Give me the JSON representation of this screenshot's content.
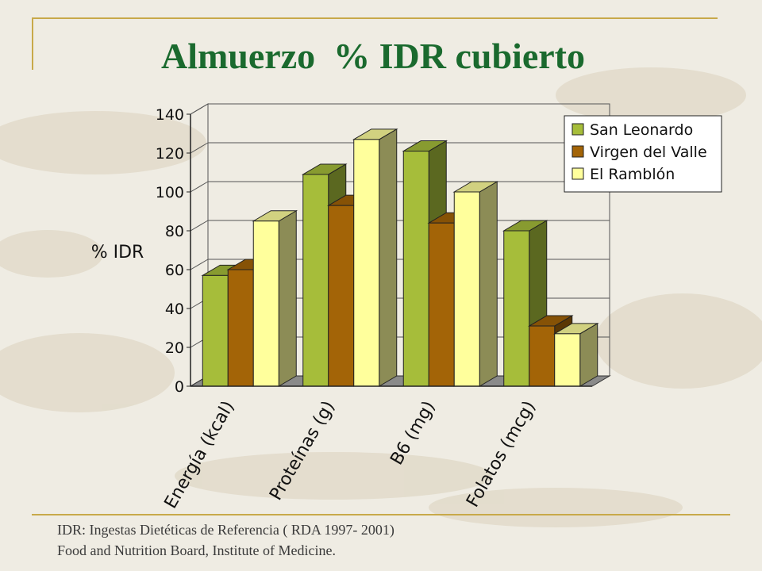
{
  "title": "Almuerzo  % IDR cubierto",
  "footnote": {
    "line1": "IDR: Ingestas Dietéticas de Referencia ( RDA 1997- 2001)",
    "line2": "Food and Nutrition Board, Institute of Medicine."
  },
  "colors": {
    "background": "#efece3",
    "accent_line": "#c8a94a",
    "title": "#1a6a2e"
  },
  "chart_data": {
    "type": "bar",
    "style": "3d-clustered-column",
    "title": "",
    "xlabel": "",
    "ylabel": "% IDR",
    "ylim": [
      0,
      140
    ],
    "yticks": [
      0,
      20,
      40,
      60,
      80,
      100,
      120,
      140
    ],
    "grid": true,
    "legend_position": "top-right",
    "categories": [
      "Energía (kcal)",
      "Proteínas (g)",
      "B6 (mg)",
      "Folatos (mcg)"
    ],
    "series": [
      {
        "name": "San Leonardo",
        "color": "#a6bd3a",
        "values": [
          57,
          109,
          121,
          80
        ]
      },
      {
        "name": "Virgen del Valle",
        "color": "#a36407",
        "values": [
          60,
          93,
          84,
          31
        ]
      },
      {
        "name": "El Ramblón",
        "color": "#ffff9c",
        "values": [
          85,
          127,
          100,
          27
        ]
      }
    ]
  }
}
